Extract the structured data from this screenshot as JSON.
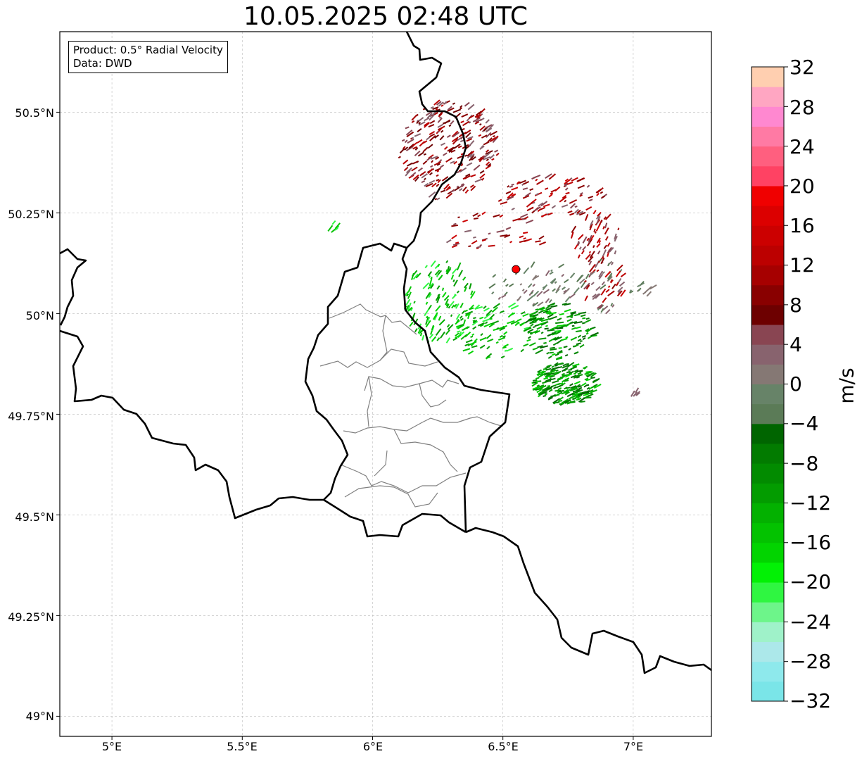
{
  "title": "10.05.2025 02:48 UTC",
  "info_box": {
    "product_line": "Product: 0.5° Radial Velocity",
    "data_line": "Data: DWD"
  },
  "axes": {
    "lat_ticks": [
      "50.5°N",
      "50.25°N",
      "50°N",
      "49.75°N",
      "49.5°N",
      "49.25°N",
      "49°N"
    ],
    "lon_ticks": [
      "5°E",
      "5.5°E",
      "6°E",
      "6.5°E",
      "7°E"
    ],
    "lat_range": [
      48.95,
      50.7
    ],
    "lon_range": [
      4.8,
      7.3
    ]
  },
  "radar_site": {
    "lat": 50.11,
    "lon": 6.55,
    "color": "#ff0000"
  },
  "colorbar": {
    "unit_label": "m/s",
    "range": [
      -32,
      32
    ],
    "tick_labels": [
      "32",
      "28",
      "24",
      "20",
      "16",
      "12",
      "8",
      "4",
      "0",
      "−4",
      "−8",
      "−12",
      "−16",
      "−20",
      "−24",
      "−28",
      "−32"
    ],
    "colors_bottom_to_top": [
      "#7ae5e8",
      "#8ee9ec",
      "#ace8ea",
      "#9ff2c9",
      "#6df58a",
      "#2ff641",
      "#02f105",
      "#02d400",
      "#03c200",
      "#03b100",
      "#039c00",
      "#028b00",
      "#027b00",
      "#006500",
      "#5b7b57",
      "#678368",
      "#857874",
      "#88636e",
      "#894552",
      "#6d0000",
      "#890000",
      "#a60000",
      "#bc0000",
      "#cc0000",
      "#dc0000",
      "#f00000",
      "#ff4263",
      "#ff5f7f",
      "#ff7aa4",
      "#ff88d0",
      "#ffa6c2",
      "#ffcfb0"
    ]
  },
  "colors": {
    "border": "#000000",
    "admin_border": "#808080",
    "grid": "#bbbbbb"
  }
}
